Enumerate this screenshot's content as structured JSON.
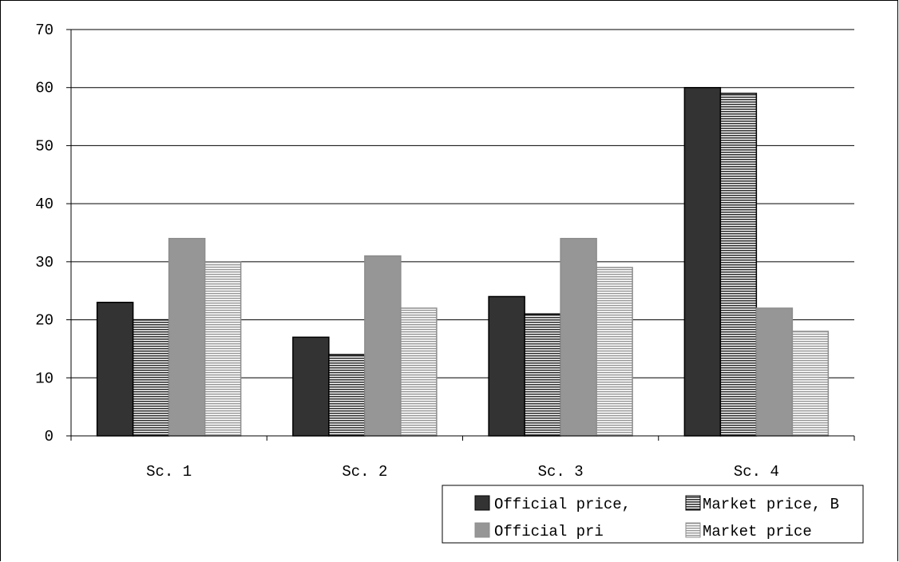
{
  "chart_data": {
    "type": "bar",
    "title": "",
    "xlabel": "",
    "ylabel": "",
    "categories": [
      "Sc. 1",
      "Sc. 2",
      "Sc. 3",
      "Sc. 4"
    ],
    "ylim": [
      0,
      70
    ],
    "yticks": [
      0,
      10,
      20,
      30,
      40,
      50,
      60,
      70
    ],
    "grid": true,
    "legend_position": "bottom-right",
    "series": [
      {
        "name": "Official price,",
        "values": [
          23,
          17,
          24,
          60
        ],
        "color": "#333333",
        "pattern": "solid"
      },
      {
        "name": "Market price, B",
        "values": [
          20,
          14,
          21,
          59
        ],
        "color": "#333333",
        "pattern": "dense-horizontal-lines"
      },
      {
        "name": "Official pri",
        "values": [
          34,
          31,
          34,
          22
        ],
        "color": "#969696",
        "pattern": "solid"
      },
      {
        "name": "Market price",
        "values": [
          30,
          22,
          29,
          18
        ],
        "color": "#969696",
        "pattern": "light-horizontal-lines"
      }
    ]
  }
}
